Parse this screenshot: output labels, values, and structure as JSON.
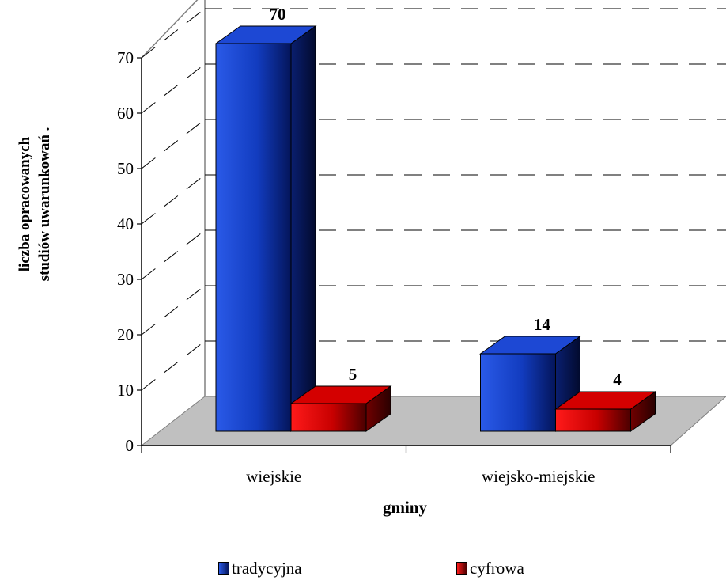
{
  "chart_data": {
    "type": "bar",
    "title": "",
    "xlabel": "gminy",
    "ylabel_lines": [
      "liczba opracowanych",
      "studiów uwarunkowań  ."
    ],
    "categories": [
      "wiejskie",
      "wiejsko-miejskie"
    ],
    "series": [
      {
        "name": "tradycyjna",
        "values": [
          70,
          14
        ],
        "color": "#1f4fdc",
        "dark": "#061a66"
      },
      {
        "name": "cyfrowa",
        "values": [
          5,
          4
        ],
        "color": "#e00000",
        "dark": "#5a0000"
      }
    ],
    "ylim": [
      0,
      70
    ],
    "yticks": [
      0,
      10,
      20,
      30,
      40,
      50,
      60,
      70
    ],
    "grid": true,
    "three_d": true,
    "floor_color": "#c0c0c0",
    "legend_position": "bottom"
  }
}
